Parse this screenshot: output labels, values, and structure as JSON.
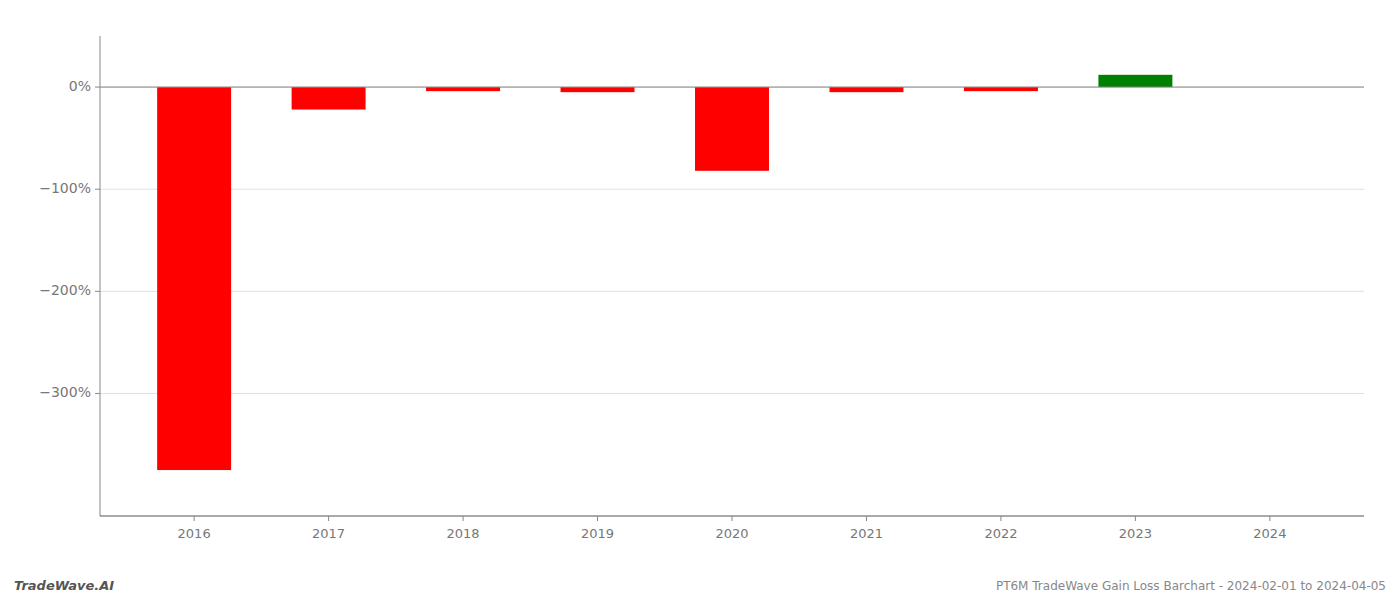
{
  "chart_data": {
    "type": "bar",
    "x": [
      2016,
      2017,
      2018,
      2019,
      2020,
      2021,
      2022,
      2023,
      2024
    ],
    "values": [
      -375,
      -22,
      -4,
      -5,
      -82,
      -5,
      -4,
      12,
      0
    ],
    "colors": [
      "#ff0000",
      "#ff0000",
      "#ff0000",
      "#ff0000",
      "#ff0000",
      "#ff0000",
      "#ff0000",
      "#008000",
      "#ffffff"
    ],
    "xlim": [
      2015.3,
      2024.7
    ],
    "xticks": [
      2016,
      2017,
      2018,
      2019,
      2020,
      2021,
      2022,
      2023,
      2024
    ],
    "ylim": [
      -420,
      50
    ],
    "yticks": [
      {
        "value": 0,
        "label": "0%"
      },
      {
        "value": -100,
        "label": "−100%"
      },
      {
        "value": -200,
        "label": "−200%"
      },
      {
        "value": -300,
        "label": "−300%"
      }
    ],
    "grid": true,
    "annotations": [
      "TradeWave.AI",
      "PT6M TradeWave Gain Loss Barchart - 2024-02-01 to 2024-04-05"
    ]
  }
}
